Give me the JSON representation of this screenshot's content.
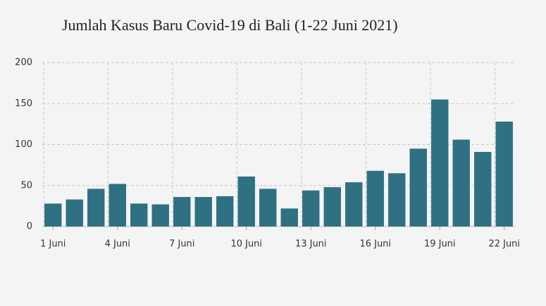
{
  "chart_data": {
    "type": "bar",
    "title": "Jumlah Kasus Baru Covid-19 di Bali (1-22 Juni 2021)",
    "categories": [
      "1 Juni",
      null,
      null,
      "4 Juni",
      null,
      null,
      "7 Juni",
      null,
      null,
      "10 Juni",
      null,
      null,
      "13 Juni",
      null,
      null,
      "16 Juni",
      null,
      null,
      "19 Juni",
      null,
      null,
      "22 Juni"
    ],
    "values": [
      28,
      33,
      46,
      52,
      28,
      27,
      36,
      36,
      37,
      61,
      46,
      22,
      44,
      48,
      54,
      68,
      65,
      95,
      155,
      106,
      91,
      128
    ],
    "color": "#2f7182",
    "ylim": [
      0,
      200
    ],
    "yticks": [
      0,
      50,
      100,
      150,
      200
    ],
    "grid": true
  }
}
